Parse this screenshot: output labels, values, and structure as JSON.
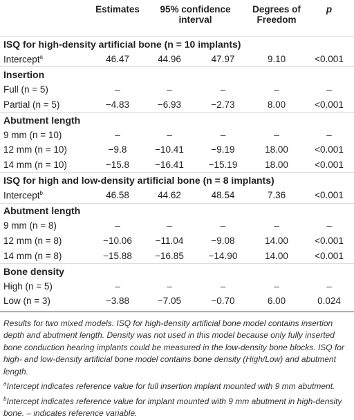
{
  "table": {
    "header": [
      "Estimates",
      "95% confidence interval",
      "Degrees of Freedom",
      "p"
    ],
    "rows": [
      {
        "heading": "ISQ for high-density artificial bone (n = 10 implants)"
      },
      {
        "label": "Intercept",
        "sup": "a",
        "cells": [
          "46.47",
          "44.96",
          "47.97",
          "9.10",
          "<0.001"
        ]
      },
      {
        "heading": "Insertion"
      },
      {
        "label": "Full (n = 5)",
        "cells": [
          "–",
          "–",
          "–",
          "–",
          "–"
        ]
      },
      {
        "label": "Partial (n = 5)",
        "cells": [
          "−4.83",
          "−6.93",
          "−2.73",
          "8.00",
          "<0.001"
        ]
      },
      {
        "heading": "Abutment length"
      },
      {
        "label": "9 mm (n = 10)",
        "cells": [
          "–",
          "–",
          "–",
          "–",
          "–"
        ]
      },
      {
        "label": "12 mm (n = 10)",
        "cells": [
          "−9.8",
          "−10.41",
          "−9.19",
          "18.00",
          "<0.001"
        ]
      },
      {
        "label": "14 mm (n = 10)",
        "cells": [
          "−15.8",
          "−16.41",
          "−15.19",
          "18.00",
          "<0.001"
        ]
      },
      {
        "heading": "ISQ for high and low-density artificial bone (n = 8 implants)"
      },
      {
        "label": "Intercept",
        "sup": "b",
        "cells": [
          "46.58",
          "44.62",
          "48.54",
          "7.36",
          "<0.001"
        ]
      },
      {
        "heading": "Abutment length"
      },
      {
        "label": "9 mm (n = 8)",
        "cells": [
          "–",
          "–",
          "–",
          "–",
          "–"
        ]
      },
      {
        "label": "12 mm (n = 8)",
        "cells": [
          "−10.06",
          "−11.04",
          "−9.08",
          "14.00",
          "<0.001"
        ]
      },
      {
        "label": "14 mm (n = 8)",
        "cells": [
          "−15.88",
          "−16.85",
          "−14.90",
          "14.00",
          "<0.001"
        ]
      },
      {
        "heading": "Bone density"
      },
      {
        "label": "High (n = 5)",
        "cells": [
          "–",
          "–",
          "–",
          "–",
          "–"
        ]
      },
      {
        "label": "Low (n = 3)",
        "cells": [
          "−3.88",
          "−7.05",
          "−0.70",
          "6.00",
          "0.024"
        ]
      }
    ]
  },
  "notes": {
    "text": "Results for two mixed models. ISQ for high-density artificial bone model contains insertion depth and abutment length. Density was not used in this model because only fully inserted bone conduction hearing implants could be measured in the low-density bone blocks. ISQ for high- and low-density artificial bone model contains bone density (High/Low) and abutment length.",
    "footnotes": [
      {
        "sup": "a",
        "text": "Intercept indicates reference value for full insertion implant mounted with 9 mm abutment."
      },
      {
        "sup": "b",
        "text": "Intercept indicates reference value for implant mounted with 9 mm abutment in high-density bone. – indicates reference variable."
      }
    ]
  }
}
